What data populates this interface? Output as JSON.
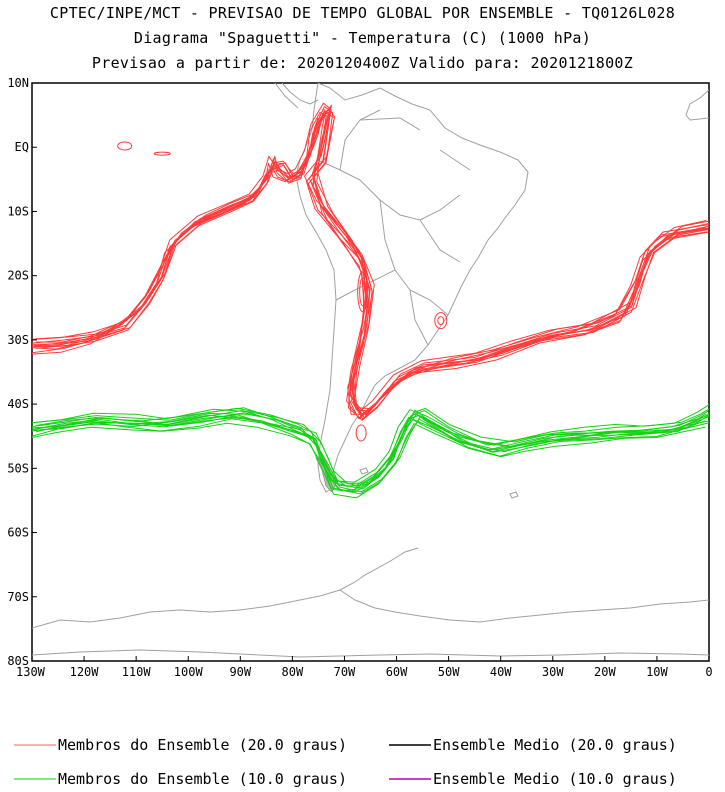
{
  "titles": {
    "line1": "CPTEC/INPE/MCT - PREVISAO DE TEMPO GLOBAL POR ENSEMBLE - TQ0126L028",
    "line2": "Diagrama \"Spaguetti\" - Temperatura (C) (1000 hPa)",
    "line3": "Previsao a partir de: 2020120400Z  Valido para: 2020121800Z"
  },
  "axes": {
    "lat_labels": [
      "10N",
      "EQ",
      "10S",
      "20S",
      "30S",
      "40S",
      "50S",
      "60S",
      "70S",
      "80S"
    ],
    "lat_values": [
      10,
      0,
      -10,
      -20,
      -30,
      -40,
      -50,
      -60,
      -70,
      -80
    ],
    "lon_labels": [
      "130W",
      "120W",
      "110W",
      "100W",
      "90W",
      "80W",
      "70W",
      "60W",
      "50W",
      "40W",
      "30W",
      "20W",
      "10W",
      "0"
    ],
    "lon_values": [
      -130,
      -120,
      -110,
      -100,
      -90,
      -80,
      -70,
      -60,
      -50,
      -40,
      -30,
      -20,
      -10,
      0
    ],
    "lon_range": [
      -130,
      0
    ],
    "lat_range": [
      -80,
      10
    ]
  },
  "colors": {
    "member20": "#ff3a3a",
    "member10": "#16d016",
    "mean20": "#000000",
    "mean10": "#b000b0",
    "coast": "#a0a0a0"
  },
  "legend": [
    {
      "label": "Membros do Ensemble (20.0 graus)",
      "color": "#ff8080"
    },
    {
      "label": "Ensemble Medio (20.0 graus)",
      "color": "#000000"
    },
    {
      "label": "Membros do Ensemble (10.0 graus)",
      "color": "#33dd33"
    },
    {
      "label": "Ensemble Medio (10.0 graus)",
      "color": "#b000b0"
    }
  ],
  "map_data": {
    "contour_20C": [
      [
        [
          -130,
          -30.5
        ],
        [
          -124,
          -30.2
        ],
        [
          -118,
          -29.5
        ],
        [
          -112,
          -28
        ],
        [
          -108,
          -24
        ],
        [
          -105,
          -20
        ],
        [
          -103,
          -15
        ],
        [
          -98,
          -11.5
        ],
        [
          -92,
          -9.5
        ],
        [
          -88,
          -8
        ],
        [
          -85,
          -5
        ],
        [
          -84,
          -2
        ],
        [
          -83,
          -4
        ],
        [
          -81,
          -5
        ],
        [
          -79,
          -4
        ],
        [
          -77,
          -1
        ],
        [
          -76,
          3
        ],
        [
          -74,
          6
        ],
        [
          -72.5,
          5
        ],
        [
          -74,
          -2
        ],
        [
          -77,
          -5
        ],
        [
          -75,
          -9
        ],
        [
          -71,
          -13
        ],
        [
          -67,
          -17
        ],
        [
          -65,
          -22
        ],
        [
          -66,
          -28
        ],
        [
          -68,
          -34
        ],
        [
          -69,
          -39
        ],
        [
          -67,
          -42
        ],
        [
          -64,
          -40
        ],
        [
          -60,
          -36
        ],
        [
          -55,
          -34
        ],
        [
          -45,
          -33
        ],
        [
          -38,
          -31
        ],
        [
          -30,
          -29
        ],
        [
          -22,
          -28
        ],
        [
          -15,
          -25
        ],
        [
          -13,
          -20
        ],
        [
          -11,
          -16
        ],
        [
          -6,
          -13
        ],
        [
          0,
          -12
        ]
      ],
      [
        [
          -130,
          -32
        ],
        [
          -124,
          -31.5
        ],
        [
          -118,
          -30
        ],
        [
          -112,
          -27
        ],
        [
          -108,
          -23
        ],
        [
          -105,
          -18
        ],
        [
          -102,
          -14
        ],
        [
          -97,
          -11
        ],
        [
          -92,
          -9
        ],
        [
          -87,
          -7.5
        ],
        [
          -85,
          -4
        ],
        [
          -82,
          -3
        ],
        [
          -80,
          -5
        ],
        [
          -78,
          -4.5
        ],
        [
          -76.5,
          0
        ],
        [
          -75,
          4
        ],
        [
          -73,
          6
        ],
        [
          -73.5,
          4
        ],
        [
          -75,
          -2
        ],
        [
          -76,
          -6
        ],
        [
          -73,
          -11
        ],
        [
          -69,
          -15
        ],
        [
          -66,
          -19
        ],
        [
          -66,
          -25
        ],
        [
          -67,
          -31
        ],
        [
          -69,
          -37
        ],
        [
          -68,
          -41
        ],
        [
          -65,
          -41
        ],
        [
          -62,
          -38
        ],
        [
          -57,
          -35
        ],
        [
          -48,
          -34
        ],
        [
          -40,
          -32.5
        ],
        [
          -32,
          -30
        ],
        [
          -24,
          -29
        ],
        [
          -17,
          -27
        ],
        [
          -14,
          -22
        ],
        [
          -12,
          -17
        ],
        [
          -8,
          -14
        ],
        [
          0,
          -13
        ]
      ],
      [
        [
          -130,
          -31
        ],
        [
          -125,
          -31
        ],
        [
          -119,
          -29.8
        ],
        [
          -113,
          -27.5
        ],
        [
          -109,
          -25
        ],
        [
          -106,
          -21
        ],
        [
          -104,
          -16
        ],
        [
          -99,
          -12
        ],
        [
          -93,
          -10
        ],
        [
          -89,
          -8.5
        ],
        [
          -86,
          -6
        ],
        [
          -84,
          -3
        ],
        [
          -82,
          -2.5
        ],
        [
          -80,
          -4.5
        ],
        [
          -78,
          -3.5
        ],
        [
          -76,
          1
        ],
        [
          -74.5,
          5
        ],
        [
          -72.8,
          5.5
        ],
        [
          -74.2,
          0
        ],
        [
          -76,
          -4
        ],
        [
          -74,
          -10
        ],
        [
          -70,
          -14
        ],
        [
          -66.5,
          -18
        ],
        [
          -65.5,
          -23
        ],
        [
          -67,
          -30
        ],
        [
          -68.5,
          -36
        ],
        [
          -68.5,
          -40
        ],
        [
          -66,
          -42
        ],
        [
          -63,
          -39
        ],
        [
          -58,
          -35.5
        ],
        [
          -50,
          -33.5
        ],
        [
          -42,
          -32
        ],
        [
          -34,
          -30
        ],
        [
          -26,
          -28.5
        ],
        [
          -18,
          -26
        ],
        [
          -14.5,
          -21
        ],
        [
          -12.5,
          -16.5
        ],
        [
          -9,
          -13.5
        ],
        [
          0,
          -12.5
        ]
      ]
    ],
    "contour_10C": [
      [
        [
          -130,
          -43.5
        ],
        [
          -124,
          -43
        ],
        [
          -118,
          -42.2
        ],
        [
          -110,
          -42.5
        ],
        [
          -104,
          -43
        ],
        [
          -97,
          -42
        ],
        [
          -90,
          -41.2
        ],
        [
          -84,
          -42.5
        ],
        [
          -79,
          -44
        ],
        [
          -76,
          -45
        ],
        [
          -74,
          -49
        ],
        [
          -72,
          -52.5
        ],
        [
          -68,
          -53
        ],
        [
          -64,
          -51
        ],
        [
          -61,
          -48
        ],
        [
          -59,
          -44
        ],
        [
          -57,
          -41.5
        ],
        [
          -54,
          -42.8
        ],
        [
          -48,
          -45.5
        ],
        [
          -42,
          -47
        ],
        [
          -36,
          -46
        ],
        [
          -30,
          -45
        ],
        [
          -24,
          -44.5
        ],
        [
          -18,
          -44
        ],
        [
          -12,
          -44
        ],
        [
          -6,
          -43.5
        ],
        [
          -2,
          -42
        ],
        [
          0,
          -41
        ]
      ],
      [
        [
          -130,
          -45
        ],
        [
          -125,
          -44
        ],
        [
          -118,
          -43
        ],
        [
          -111,
          -43.5
        ],
        [
          -105,
          -44
        ],
        [
          -98,
          -43.5
        ],
        [
          -92,
          -42.5
        ],
        [
          -86,
          -43
        ],
        [
          -80,
          -44.5
        ],
        [
          -76.5,
          -46
        ],
        [
          -74,
          -50
        ],
        [
          -71.5,
          -53.5
        ],
        [
          -67,
          -54
        ],
        [
          -63,
          -52
        ],
        [
          -60,
          -49
        ],
        [
          -58,
          -45
        ],
        [
          -56,
          -42.5
        ],
        [
          -52,
          -44
        ],
        [
          -46,
          -46.5
        ],
        [
          -40,
          -48
        ],
        [
          -35,
          -47
        ],
        [
          -29,
          -46
        ],
        [
          -22,
          -45.5
        ],
        [
          -16,
          -45
        ],
        [
          -10,
          -45
        ],
        [
          -5,
          -44
        ],
        [
          0,
          -43
        ]
      ],
      [
        [
          -130,
          -44
        ],
        [
          -124,
          -43.2
        ],
        [
          -117,
          -42.5
        ],
        [
          -110,
          -43
        ],
        [
          -103,
          -42.5
        ],
        [
          -96,
          -41.5
        ],
        [
          -89,
          -41.8
        ],
        [
          -83,
          -42.5
        ],
        [
          -78,
          -43.5
        ],
        [
          -75,
          -46.5
        ],
        [
          -73,
          -51
        ],
        [
          -70,
          -53
        ],
        [
          -65.5,
          -52.5
        ],
        [
          -62,
          -50
        ],
        [
          -59.5,
          -46
        ],
        [
          -57.5,
          -42
        ],
        [
          -55,
          -41.2
        ],
        [
          -50,
          -43.5
        ],
        [
          -44,
          -45.5
        ],
        [
          -38,
          -46.5
        ],
        [
          -32,
          -45.5
        ],
        [
          -26,
          -45
        ],
        [
          -20,
          -44.8
        ],
        [
          -14,
          -44.5
        ],
        [
          -8,
          -44.2
        ],
        [
          -3,
          -43
        ],
        [
          0,
          -42
        ]
      ]
    ],
    "island_contours_20C": [
      {
        "lon": -112.2,
        "lat": 0.2
      },
      {
        "lon": -105,
        "lat": -1.0
      }
    ]
  }
}
